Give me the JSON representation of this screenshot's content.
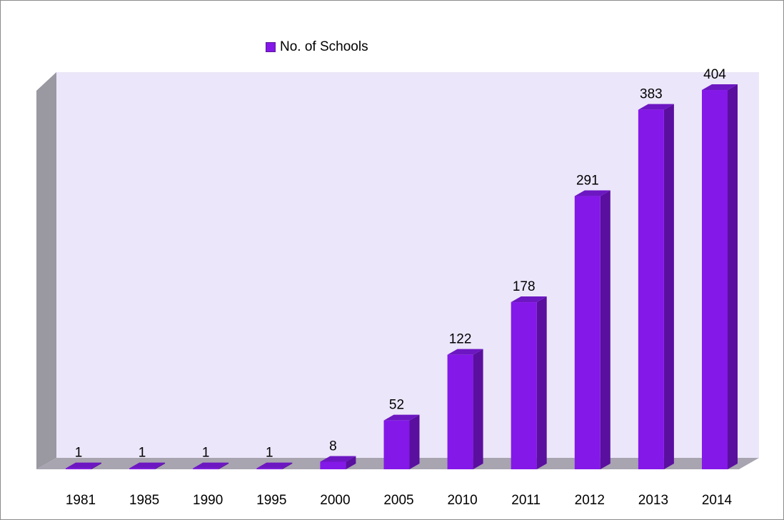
{
  "chart_data": {
    "type": "bar",
    "title": "",
    "xlabel": "",
    "ylabel": "",
    "categories": [
      "1981",
      "1985",
      "1990",
      "1995",
      "2000",
      "2005",
      "2010",
      "2011",
      "2012",
      "2013",
      "2014"
    ],
    "series": [
      {
        "name": "No. of Schools",
        "values": [
          1,
          1,
          1,
          1,
          8,
          52,
          122,
          178,
          291,
          383,
          404
        ]
      }
    ],
    "data_labels": [
      "1",
      "1",
      "1",
      "1",
      "8",
      "52",
      "122",
      "178",
      "291",
      "383",
      "404"
    ],
    "ylim": [
      0,
      450
    ],
    "legend_position": "top-center",
    "grid": false,
    "three_d": true,
    "colors": {
      "bar_front": "#8418e8",
      "bar_side": "#5a0f9f",
      "bar_top": "#6d17c2",
      "wall_back": "#ebe6f9",
      "wall_left": "#9a98a0",
      "floor": "#a8a4b0"
    }
  }
}
